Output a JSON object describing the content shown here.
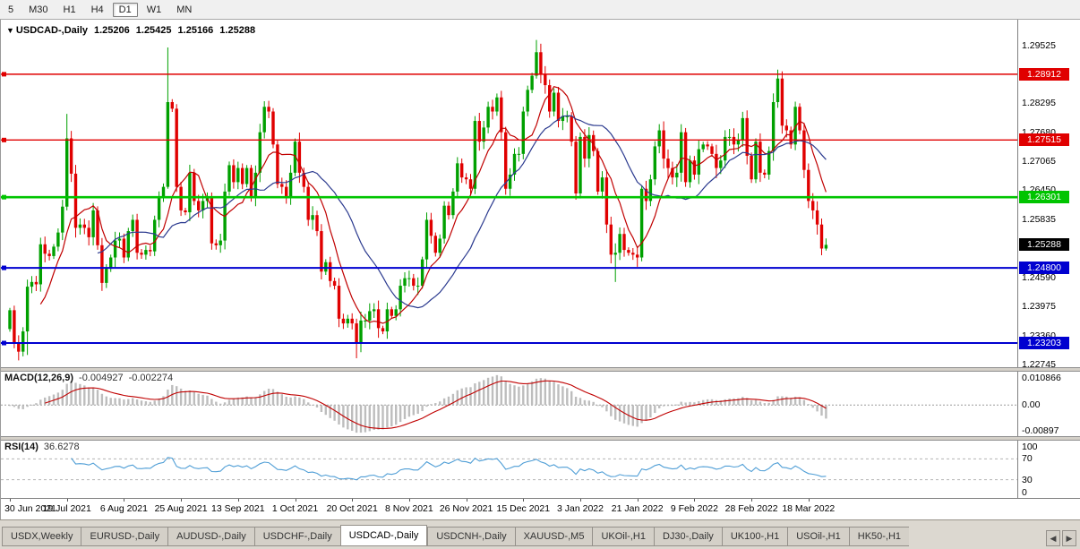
{
  "toolbar": {
    "timeframes": [
      {
        "label": "5",
        "active": false
      },
      {
        "label": "M30",
        "active": false
      },
      {
        "label": "H1",
        "active": false
      },
      {
        "label": "H4",
        "active": false
      },
      {
        "label": "D1",
        "active": true
      },
      {
        "label": "W1",
        "active": false
      },
      {
        "label": "MN",
        "active": false
      }
    ]
  },
  "chart": {
    "title": {
      "dropdown_icon": "▼",
      "symbol": "USDCAD-,Daily",
      "open": "1.25206",
      "high": "1.25425",
      "low": "1.25166",
      "close": "1.25288"
    },
    "colors": {
      "up": "#00a000",
      "down": "#e00000",
      "ma_fast": "#c00000",
      "ma_slow": "#2b3a8f",
      "axis_text": "#000000"
    }
  },
  "chart_data": {
    "type": "candlestick",
    "symbol": "USDCAD",
    "timeframe": "Daily",
    "price_range": [
      1.2269,
      1.3007
    ],
    "x_tick_indices": [
      0,
      13,
      26,
      39,
      52,
      65,
      78,
      91,
      104,
      117,
      130,
      143,
      156,
      169,
      182
    ],
    "x_tick_labels": [
      "30 Jun 2021",
      "19 Jul 2021",
      "6 Aug 2021",
      "25 Aug 2021",
      "13 Sep 2021",
      "1 Oct 2021",
      "20 Oct 2021",
      "8 Nov 2021",
      "26 Nov 2021",
      "15 Dec 2021",
      "3 Jan 2022",
      "21 Jan 2022",
      "9 Feb 2022",
      "28 Feb 2022",
      "18 Mar 2022"
    ],
    "closes": [
      1.239,
      1.232,
      1.2302,
      1.2345,
      1.244,
      1.245,
      1.2445,
      1.253,
      1.251,
      1.2505,
      1.2525,
      1.2555,
      1.261,
      1.2755,
      1.268,
      1.2565,
      1.2572,
      1.2565,
      1.2545,
      1.2602,
      1.2528,
      1.2448,
      1.2478,
      1.2502,
      1.2538,
      1.2542,
      1.2502,
      1.2558,
      1.2582,
      1.2512,
      1.2508,
      1.2518,
      1.2515,
      1.2582,
      1.2628,
      1.2652,
      1.2832,
      1.2818,
      1.2652,
      1.2602,
      1.2598,
      1.2682,
      1.2622,
      1.2602,
      1.2622,
      1.2628,
      1.2532,
      1.2528,
      1.2538,
      1.2642,
      1.2698,
      1.2662,
      1.2692,
      1.2658,
      1.2692,
      1.2628,
      1.2682,
      1.2768,
      1.2822,
      1.2812,
      1.2742,
      1.2658,
      1.2652,
      1.2632,
      1.2682,
      1.2748,
      1.2682,
      1.2652,
      1.2582,
      1.2592,
      1.2558,
      1.2472,
      1.2492,
      1.2452,
      1.2442,
      1.2372,
      1.2362,
      1.2372,
      1.2362,
      1.2322,
      1.2368,
      1.2368,
      1.2388,
      1.2392,
      1.2352,
      1.2345,
      1.2392,
      1.2378,
      1.2392,
      1.2442,
      1.2458,
      1.2458,
      1.2442,
      1.2442,
      1.2498,
      1.2582,
      1.2548,
      1.2512,
      1.2542,
      1.2612,
      1.2592,
      1.2642,
      1.2702,
      1.2672,
      1.2668,
      1.2648,
      1.2792,
      1.2748,
      1.2778,
      1.2822,
      1.2812,
      1.2842,
      1.2768,
      1.2648,
      1.2678,
      1.2722,
      1.2722,
      1.2812,
      1.2858,
      1.2888,
      1.2938,
      1.2892,
      1.2868,
      1.2812,
      1.2852,
      1.2792,
      1.2802,
      1.2802,
      1.2748,
      1.2638,
      1.2758,
      1.2712,
      1.2762,
      1.2728,
      1.2642,
      1.2672,
      1.2572,
      1.2508,
      1.2512,
      1.2552,
      1.2518,
      1.2512,
      1.2508,
      1.2502,
      1.2648,
      1.2622,
      1.2668,
      1.2738,
      1.2772,
      1.2712,
      1.2692,
      1.2672,
      1.2682,
      1.2768,
      1.2662,
      1.2708,
      1.2678,
      1.2732,
      1.2742,
      1.2738,
      1.2722,
      1.2692,
      1.2708,
      1.2758,
      1.2758,
      1.2742,
      1.2752,
      1.2798,
      1.2718,
      1.2668,
      1.2748,
      1.2682,
      1.2678,
      1.2728,
      1.2832,
      1.2882,
      1.2782,
      1.2772,
      1.2742,
      1.2822,
      1.2772,
      1.2688,
      1.2622,
      1.2602,
      1.2572,
      1.2521,
      1.25288
    ],
    "extremes": {
      "4": [
        1.2455,
        1.2295
      ],
      "13": [
        1.2807,
        1.2602
      ],
      "36": [
        1.2948,
        1.2648
      ],
      "79": [
        1.2372,
        1.2288
      ],
      "120": [
        1.2964,
        1.2882
      ],
      "138": [
        1.2532,
        1.245
      ],
      "175": [
        1.2901,
        1.282
      ],
      "186": [
        1.25425,
        1.25166
      ]
    },
    "moving_averages": [
      {
        "type": "sma",
        "period": 8,
        "color": "#c00000"
      },
      {
        "type": "sma",
        "period": 21,
        "color": "#2b3a8f"
      }
    ],
    "hlines": [
      {
        "value": 1.28912,
        "label": "1.28912",
        "color": "#e00000",
        "width": 1.4
      },
      {
        "value": 1.27515,
        "label": "1.27515",
        "color": "#e00000",
        "width": 1.4
      },
      {
        "value": 1.26301,
        "label": "1.26301",
        "color": "#00c400",
        "width": 2.6
      },
      {
        "value": 1.248,
        "label": "1.24800",
        "color": "#0000d0",
        "width": 2
      },
      {
        "value": 1.23203,
        "label": "1.23203",
        "color": "#0000d0",
        "width": 2
      }
    ],
    "current_price": {
      "value": 1.25288,
      "label": "1.25288",
      "badge_color": "#000000"
    },
    "y_axis": [
      {
        "value": 1.29525,
        "label": "1.29525"
      },
      {
        "value": 1.28295,
        "label": "1.28295"
      },
      {
        "value": 1.2768,
        "label": "1.27680"
      },
      {
        "value": 1.27065,
        "label": "1.27065"
      },
      {
        "value": 1.2645,
        "label": "1.26450"
      },
      {
        "value": 1.25835,
        "label": "1.25835"
      },
      {
        "value": 1.2459,
        "label": "1.24590"
      },
      {
        "value": 1.23975,
        "label": "1.23975"
      },
      {
        "value": 1.2336,
        "label": "1.23360"
      },
      {
        "value": 1.22745,
        "label": "1.22745"
      }
    ],
    "macd": {
      "params": "MACD(12,26,9)",
      "fast": 12,
      "slow": 26,
      "signal_period": 9,
      "value_main": "-0.004927",
      "value_signal": "-0.002274",
      "axis_labels": [
        "0.010866",
        "0.00",
        "-0.00897"
      ],
      "hist_color": "#bdbdbd",
      "signal_color": "#c00000"
    },
    "rsi": {
      "params": "RSI(14)",
      "period": 14,
      "value": "36.6278",
      "levels": [
        70,
        30
      ],
      "axis_labels": [
        "100",
        "70",
        "30",
        "0"
      ],
      "color": "#4f9ed6"
    }
  },
  "tabs": {
    "items": [
      {
        "label": "USDX,Weekly",
        "active": false
      },
      {
        "label": "EURUSD-,Daily",
        "active": false
      },
      {
        "label": "AUDUSD-,Daily",
        "active": false
      },
      {
        "label": "USDCHF-,Daily",
        "active": false
      },
      {
        "label": "USDCAD-,Daily",
        "active": true
      },
      {
        "label": "USDCNH-,Daily",
        "active": false
      },
      {
        "label": "XAUUSD-,M5",
        "active": false
      },
      {
        "label": "UKOil-,H1",
        "active": false
      },
      {
        "label": "DJ30-,Daily",
        "active": false
      },
      {
        "label": "UK100-,H1",
        "active": false
      },
      {
        "label": "USOil-,H1",
        "active": false
      },
      {
        "label": "HK50-,H1",
        "active": false
      }
    ],
    "scroll_left": "◀",
    "scroll_right": "▶"
  }
}
